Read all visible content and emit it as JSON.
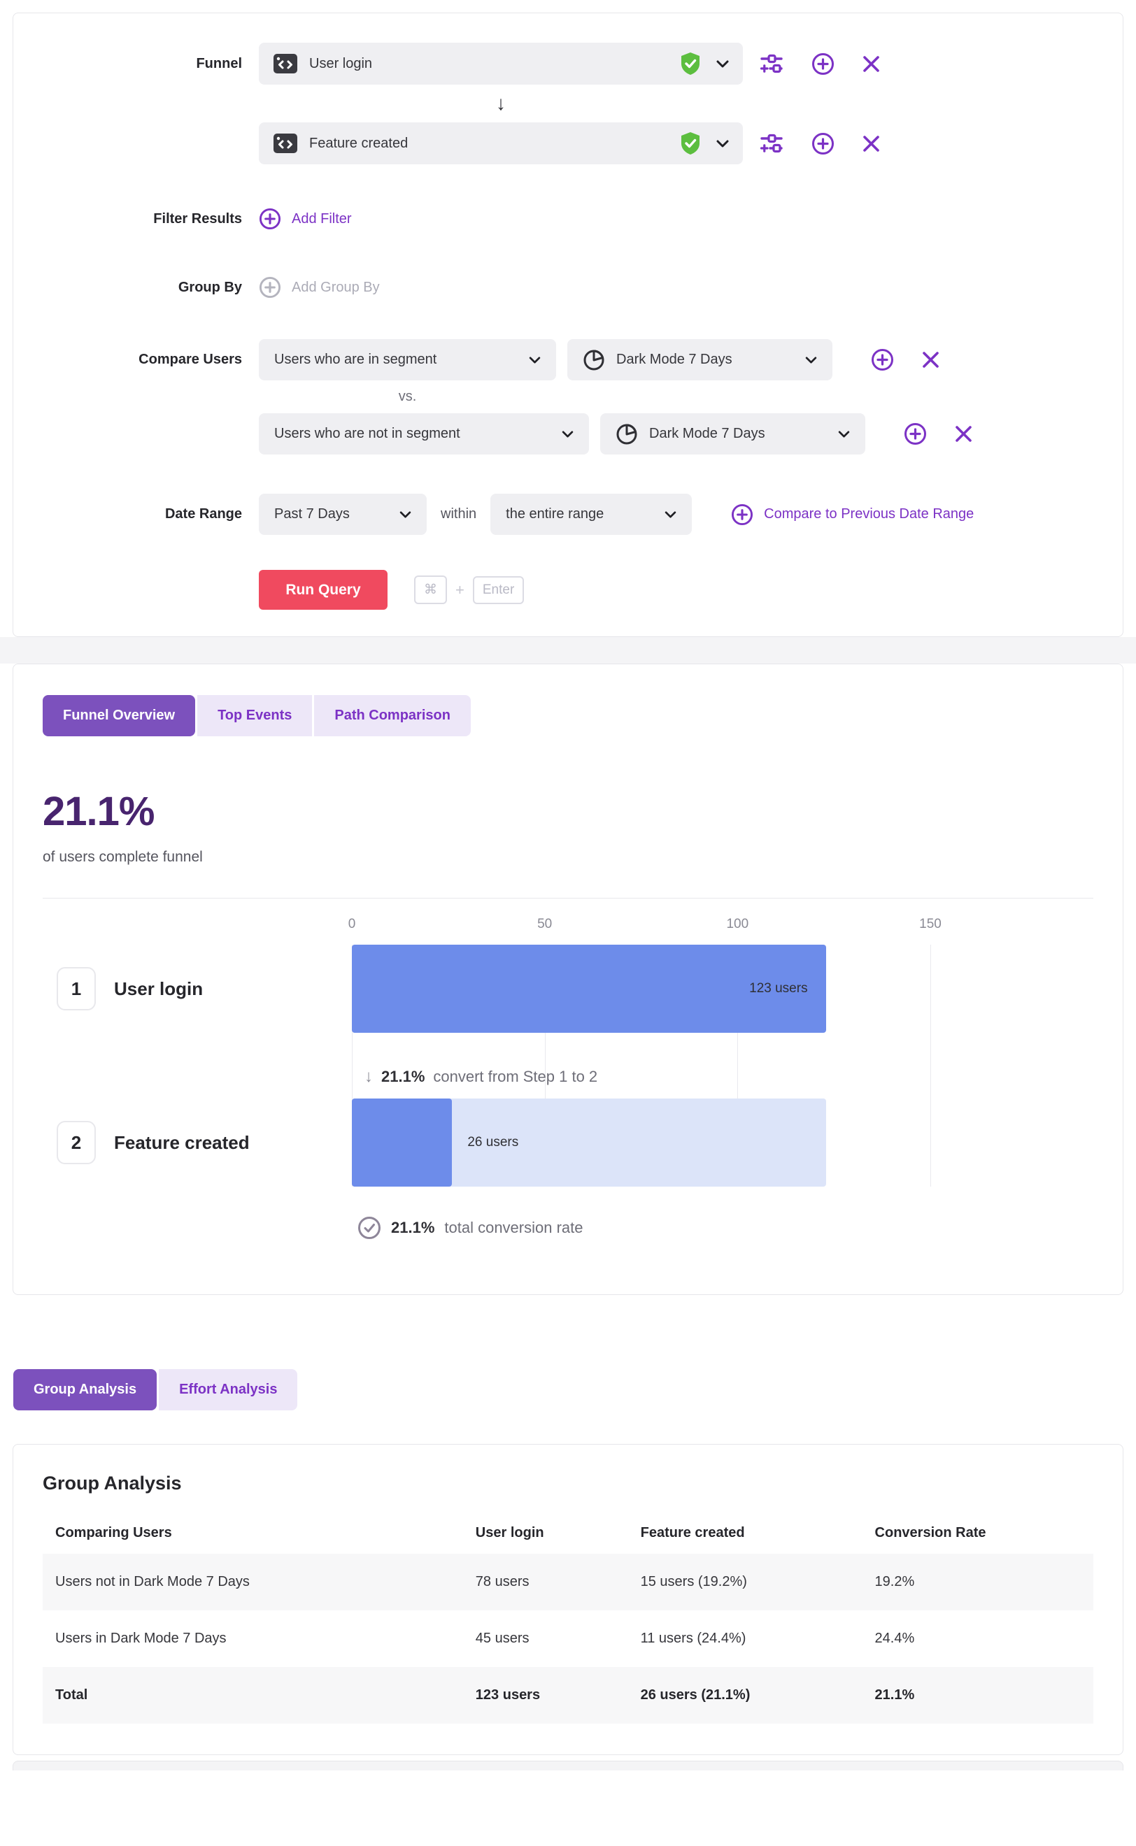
{
  "colors": {
    "accent_purple": "#7C32C5",
    "tab_active_purple": "#7C51BD",
    "tab_inactive_bg": "#EDE7F8",
    "headline_purple": "#48246E",
    "run_query_red": "#F04A5F",
    "bar_blue": "#6D8CEA",
    "bar_light_blue": "#DCE4F9",
    "verified_green": "#5CBE3F",
    "pill_gray": "#EFEFF2"
  },
  "query_builder": {
    "funnel_label": "Funnel",
    "steps": [
      {
        "name": "User login"
      },
      {
        "name": "Feature created"
      }
    ],
    "filter_results": {
      "label": "Filter Results",
      "action": "Add Filter"
    },
    "group_by": {
      "label": "Group By",
      "action": "Add Group By"
    },
    "compare_users": {
      "label": "Compare Users",
      "vs_label": "vs.",
      "rows": [
        {
          "selector": "Users who are in segment",
          "segment": "Dark Mode 7 Days"
        },
        {
          "selector": "Users who are not in segment",
          "segment": "Dark Mode 7 Days"
        }
      ]
    },
    "date_range": {
      "label": "Date Range",
      "range": "Past 7 Days",
      "within": "within",
      "scope": "the entire range",
      "compare_link": "Compare to Previous Date Range"
    },
    "run_query": {
      "label": "Run Query",
      "kbd_cmd": "⌘",
      "kbd_plus": "+",
      "kbd_enter": "Enter"
    }
  },
  "results": {
    "tabs": [
      {
        "label": "Funnel Overview",
        "active": true
      },
      {
        "label": "Top Events",
        "active": false
      },
      {
        "label": "Path Comparison",
        "active": false
      }
    ],
    "headline": {
      "value": "21.1%",
      "caption": "of users complete funnel"
    },
    "chart_data": {
      "type": "bar",
      "orientation": "horizontal",
      "x_ticks": [
        0,
        50,
        100,
        150
      ],
      "xlim": [
        0,
        150
      ],
      "steps": [
        {
          "index": "1",
          "name": "User login",
          "users": 123,
          "label": "123 users"
        },
        {
          "index": "2",
          "name": "Feature created",
          "users": 26,
          "label": "26 users"
        }
      ],
      "step_conversion": {
        "value": "21.1%",
        "text": "convert from Step 1 to 2"
      },
      "total_conversion": {
        "value": "21.1%",
        "text": "total conversion rate"
      }
    }
  },
  "analysis": {
    "tabs": [
      {
        "label": "Group Analysis",
        "active": true
      },
      {
        "label": "Effort Analysis",
        "active": false
      }
    ],
    "title": "Group Analysis",
    "table": {
      "columns": [
        "Comparing Users",
        "User login",
        "Feature created",
        "Conversion Rate"
      ],
      "rows": [
        [
          "Users not in Dark Mode 7 Days",
          "78 users",
          "15 users (19.2%)",
          "19.2%"
        ],
        [
          "Users in Dark Mode 7 Days",
          "45 users",
          "11 users (24.4%)",
          "24.4%"
        ],
        [
          "Total",
          "123 users",
          "26 users (21.1%)",
          "21.1%"
        ]
      ]
    }
  }
}
